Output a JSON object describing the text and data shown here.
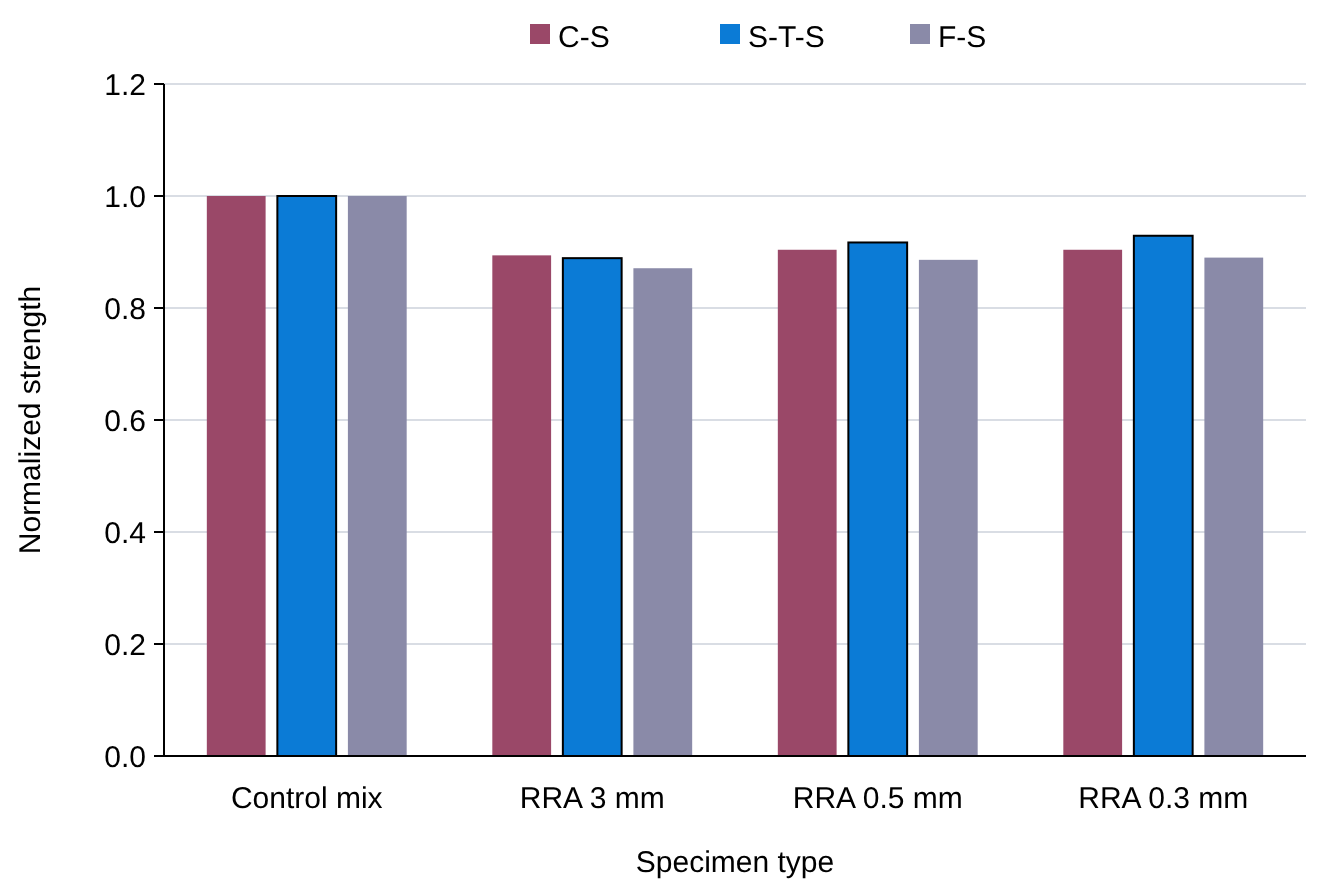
{
  "chart_data": {
    "type": "bar",
    "xlabel": "Specimen type",
    "ylabel": "Normalized strength",
    "categories": [
      "Control mix",
      "RRA 3 mm",
      "RRA 0.5 mm",
      "RRA 0.3 mm"
    ],
    "series": [
      {
        "name": "C-S",
        "color": "#9a4868",
        "values": [
          1.0,
          0.894,
          0.904,
          0.904
        ]
      },
      {
        "name": "S-T-S",
        "color": "#0b7bd6",
        "values": [
          1.0,
          0.889,
          0.917,
          0.929
        ]
      },
      {
        "name": "F-S",
        "color": "#8a8aa8",
        "values": [
          1.0,
          0.871,
          0.886,
          0.89
        ]
      }
    ],
    "ylim": [
      0,
      1.2
    ],
    "yticks": [
      {
        "value": 0,
        "label": "0.0"
      },
      {
        "value": 0.2,
        "label": "0.2"
      },
      {
        "value": 0.4,
        "label": "0.4"
      },
      {
        "value": 0.6,
        "label": "0.6"
      },
      {
        "value": 0.8,
        "label": "0.8"
      },
      {
        "value": 1,
        "label": "1.0"
      },
      {
        "value": 1.2,
        "label": "1.2"
      }
    ],
    "grid": "y",
    "legend": "top"
  }
}
